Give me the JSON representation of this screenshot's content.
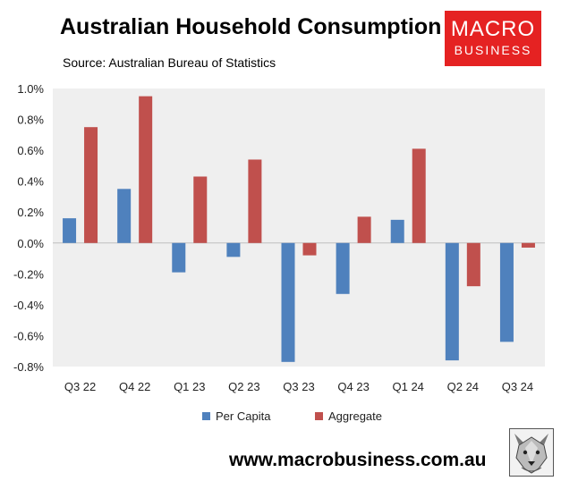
{
  "header": {
    "title": "Australian Household Consumption",
    "subtitle": "Source: Australian Bureau of Statistics"
  },
  "logo": {
    "line1": "MACRO",
    "line2": "BUSINESS",
    "bg_color": "#e52222"
  },
  "footer": {
    "url": "www.macrobusiness.com.au",
    "wolf_icon": "wolf-face-icon"
  },
  "chart_data": {
    "type": "bar",
    "title": "Australian Household Consumption",
    "subtitle": "Source: Australian Bureau of Statistics",
    "categories": [
      "Q3 22",
      "Q4 22",
      "Q1 23",
      "Q2 23",
      "Q3 23",
      "Q4 23",
      "Q1 24",
      "Q2 24",
      "Q3 24"
    ],
    "series": [
      {
        "name": "Per Capita",
        "color": "#4f81bd",
        "values": [
          0.16,
          0.35,
          -0.19,
          -0.09,
          -0.77,
          -0.33,
          0.15,
          -0.76,
          -0.64
        ]
      },
      {
        "name": "Aggregate",
        "color": "#c0504d",
        "values": [
          0.75,
          0.95,
          0.43,
          0.54,
          -0.08,
          0.17,
          0.61,
          -0.28,
          -0.03
        ]
      }
    ],
    "ylim": [
      -0.8,
      1.0
    ],
    "yticks": [
      -0.8,
      -0.6,
      -0.4,
      -0.2,
      0.0,
      0.2,
      0.4,
      0.6,
      0.8,
      1.0
    ],
    "ytick_labels": [
      "-0.8%",
      "-0.6%",
      "-0.4%",
      "-0.2%",
      "0.0%",
      "0.2%",
      "0.4%",
      "0.6%",
      "0.8%",
      "1.0%"
    ],
    "grid": false,
    "plot_background": "#efefef",
    "legend": "bottom"
  }
}
